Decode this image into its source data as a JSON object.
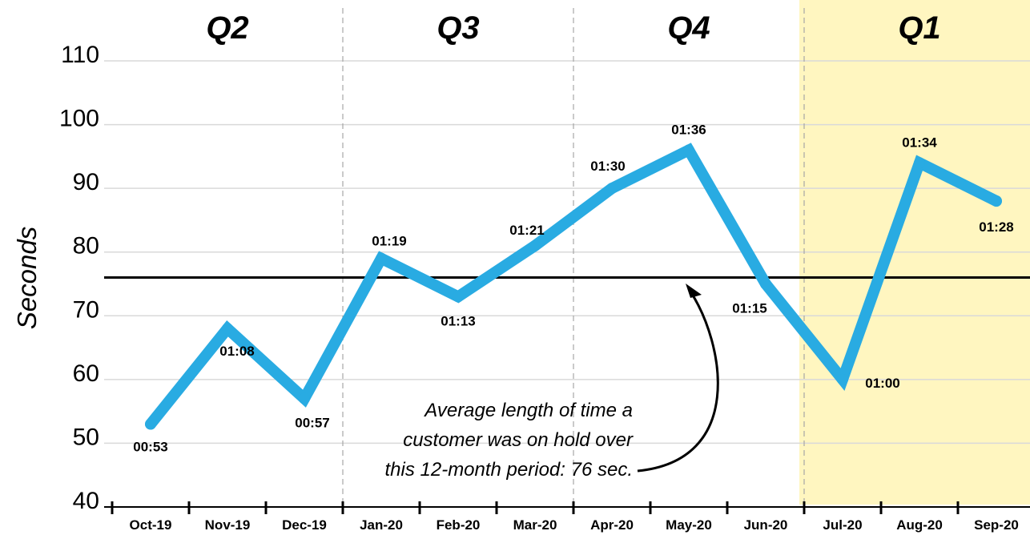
{
  "chart_data": {
    "type": "line",
    "title": "",
    "xlabel": "",
    "ylabel": "Seconds",
    "ylim": [
      40,
      110
    ],
    "yticks": [
      40,
      50,
      60,
      70,
      80,
      90,
      100,
      110
    ],
    "grid": "horizontal",
    "categories": [
      "Oct-19",
      "Nov-19",
      "Dec-19",
      "Jan-20",
      "Feb-20",
      "Mar-20",
      "Apr-20",
      "May-20",
      "Jun-20",
      "Jul-20",
      "Aug-20",
      "Sep-20"
    ],
    "series": [
      {
        "values": [
          53,
          68,
          57,
          79,
          73,
          81,
          90,
          96,
          75,
          60,
          94,
          88
        ],
        "labels": [
          "00:53",
          "01:08",
          "00:57",
          "01:19",
          "01:13",
          "01:21",
          "01:30",
          "01:36",
          "01:15",
          "01:00",
          "01:34",
          "01:28"
        ],
        "color": "#29abe2"
      }
    ],
    "reference_line": {
      "value": 76,
      "color": "#000000"
    },
    "quarters": [
      {
        "label": "Q2",
        "months": [
          "Oct-19",
          "Nov-19",
          "Dec-19"
        ]
      },
      {
        "label": "Q3",
        "months": [
          "Jan-20",
          "Feb-20",
          "Mar-20"
        ]
      },
      {
        "label": "Q4",
        "months": [
          "Apr-20",
          "May-20",
          "Jun-20"
        ]
      },
      {
        "label": "Q1",
        "months": [
          "Jul-20",
          "Aug-20",
          "Sep-20"
        ],
        "highlight": true
      }
    ],
    "highlight_color": "#fff6c0",
    "annotation": {
      "lines": [
        "Average length of time a",
        "customer was on hold over",
        "this 12-month period: 76 sec."
      ]
    }
  }
}
